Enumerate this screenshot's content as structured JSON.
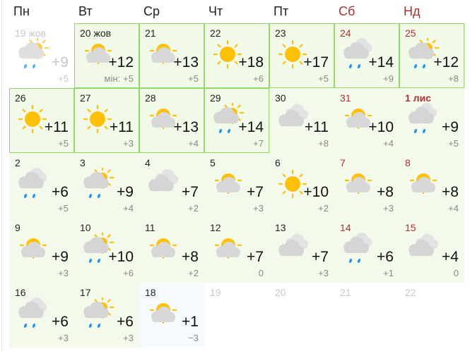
{
  "weekdays": [
    {
      "label": "Пн",
      "weekend": false
    },
    {
      "label": "Вт",
      "weekend": false
    },
    {
      "label": "Ср",
      "weekend": false
    },
    {
      "label": "Чт",
      "weekend": false
    },
    {
      "label": "Пт",
      "weekend": false
    },
    {
      "label": "Сб",
      "weekend": true
    },
    {
      "label": "Нд",
      "weekend": true
    }
  ],
  "min_label": "мін:",
  "colors": {
    "highlight_border": "#92d864",
    "weekend": "#b03030",
    "sun": "#ffc107",
    "cloud": "#d5d5d5",
    "rain": "#2196f3"
  },
  "days": [
    {
      "date": "19 жов",
      "max": "+9",
      "min": "+5",
      "icon": "partly-rain",
      "state": "past"
    },
    {
      "date": "20 жов",
      "max": "+12",
      "min": "+5",
      "icon": "partly",
      "state": "hl",
      "show_min_label": true
    },
    {
      "date": "21",
      "max": "+13",
      "min": "+5",
      "icon": "partly",
      "state": "hl"
    },
    {
      "date": "22",
      "max": "+18",
      "min": "+6",
      "icon": "sun",
      "state": "hl"
    },
    {
      "date": "23",
      "max": "+17",
      "min": "+5",
      "icon": "sun",
      "state": "hl"
    },
    {
      "date": "24",
      "max": "+14",
      "min": "+9",
      "icon": "cloudy-rain",
      "state": "hl",
      "weekend": true
    },
    {
      "date": "25",
      "max": "+12",
      "min": "+8",
      "icon": "partly-rain",
      "state": "hl",
      "weekend": true
    },
    {
      "date": "26",
      "max": "+11",
      "min": "+5",
      "icon": "sun",
      "state": "hl"
    },
    {
      "date": "27",
      "max": "+11",
      "min": "+3",
      "icon": "sun",
      "state": "hl"
    },
    {
      "date": "28",
      "max": "+13",
      "min": "+4",
      "icon": "partly",
      "state": "hl"
    },
    {
      "date": "29",
      "max": "+14",
      "min": "+7",
      "icon": "partly-rain",
      "state": "hl"
    },
    {
      "date": "30",
      "max": "+11",
      "min": "+8",
      "icon": "cloudy"
    },
    {
      "date": "31",
      "max": "+10",
      "min": "+4",
      "icon": "partly",
      "weekend": true
    },
    {
      "date": "1 лис",
      "max": "+9",
      "min": "+5",
      "icon": "cloudy-rain",
      "weekend": true,
      "bold": true
    },
    {
      "date": "2",
      "max": "+6",
      "min": "+5",
      "icon": "cloudy-rain"
    },
    {
      "date": "3",
      "max": "+9",
      "min": "+4",
      "icon": "partly-rain"
    },
    {
      "date": "4",
      "max": "+7",
      "min": "+2",
      "icon": "cloudy"
    },
    {
      "date": "5",
      "max": "+7",
      "min": "+3",
      "icon": "partly"
    },
    {
      "date": "6",
      "max": "+10",
      "min": "+2",
      "icon": "sun"
    },
    {
      "date": "7",
      "max": "+8",
      "min": "+3",
      "icon": "partly",
      "weekend": true
    },
    {
      "date": "8",
      "max": "+8",
      "min": "+4",
      "icon": "partly",
      "weekend": true
    },
    {
      "date": "9",
      "max": "+9",
      "min": "+3",
      "icon": "partly"
    },
    {
      "date": "10",
      "max": "+10",
      "min": "+6",
      "icon": "partly-rain"
    },
    {
      "date": "11",
      "max": "+8",
      "min": "+2",
      "icon": "partly"
    },
    {
      "date": "12",
      "max": "+7",
      "min": "0",
      "icon": "partly"
    },
    {
      "date": "13",
      "max": "+7",
      "min": "+3",
      "icon": "cloudy"
    },
    {
      "date": "14",
      "max": "+6",
      "min": "+1",
      "icon": "cloudy-rain",
      "weekend": true
    },
    {
      "date": "15",
      "max": "+4",
      "min": "0",
      "icon": "cloudy",
      "weekend": true
    },
    {
      "date": "16",
      "max": "+6",
      "min": "+3",
      "icon": "cloudy-rain"
    },
    {
      "date": "17",
      "max": "+6",
      "min": "+3",
      "icon": "partly-rain"
    },
    {
      "date": "18",
      "max": "+1",
      "min": "−3",
      "icon": "partly",
      "state": "last"
    },
    {
      "date": "19",
      "state": "empty"
    },
    {
      "date": "20",
      "state": "empty"
    },
    {
      "date": "21",
      "state": "empty"
    },
    {
      "date": "22",
      "state": "empty"
    }
  ]
}
